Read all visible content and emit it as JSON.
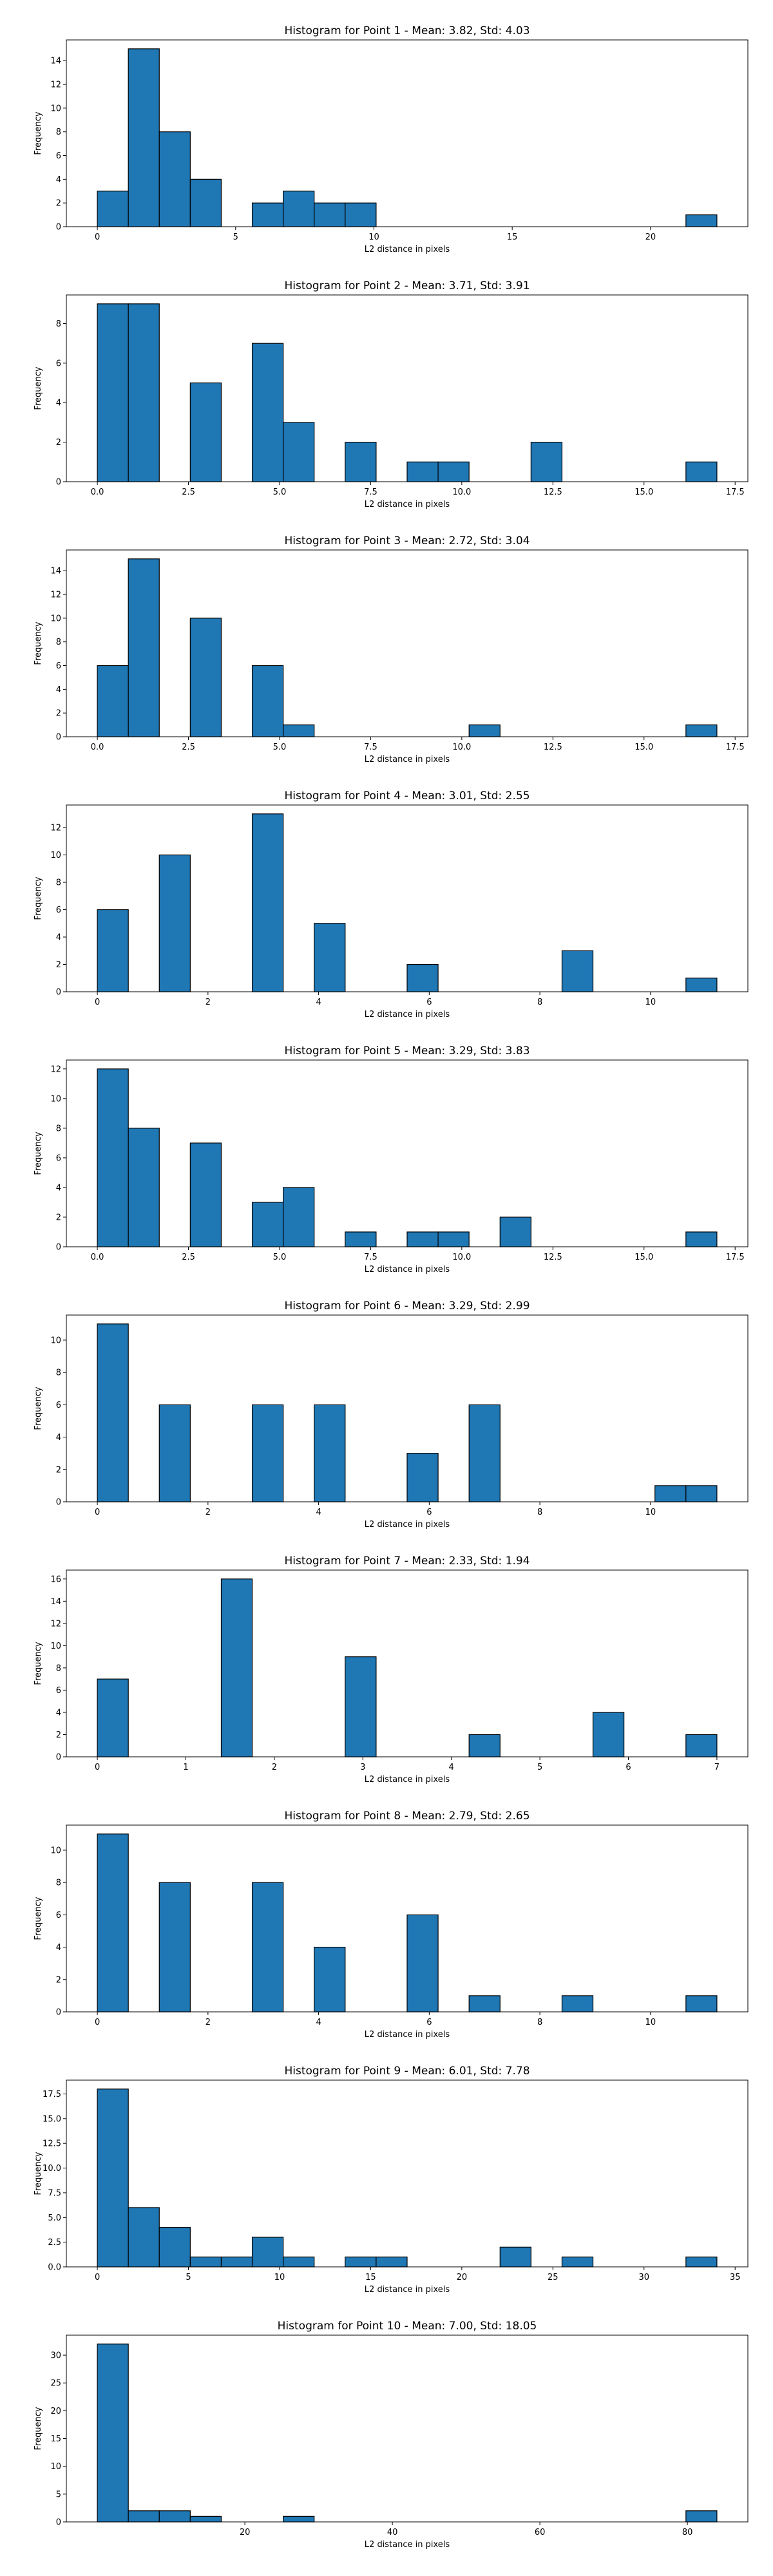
{
  "figure": {
    "bar_color": "#1f77b4",
    "edge_color": "#000000"
  },
  "chart_data": [
    {
      "type": "bar",
      "title": "Histogram for Point 1 - Mean: 3.82, Std: 4.03",
      "xlabel": "L2 distance in pixels",
      "ylabel": "Frequency",
      "xlim": [
        -1.12,
        23.52
      ],
      "ylim": [
        0,
        15.75
      ],
      "xticks": [
        0,
        5,
        10,
        15,
        20
      ],
      "xtick_labels": [
        "0",
        "5",
        "10",
        "15",
        "20"
      ],
      "yticks": [
        0,
        2,
        4,
        6,
        8,
        10,
        12,
        14
      ],
      "ytick_labels": [
        "0",
        "2",
        "4",
        "6",
        "8",
        "10",
        "12",
        "14"
      ],
      "bins": {
        "start": 0.0,
        "width": 1.12
      },
      "counts": [
        3,
        15,
        8,
        4,
        0,
        2,
        3,
        2,
        2,
        0,
        0,
        0,
        0,
        0,
        0,
        0,
        0,
        0,
        0,
        1
      ]
    },
    {
      "type": "bar",
      "title": "Histogram for Point 2 - Mean: 3.71, Std: 3.91",
      "xlabel": "L2 distance in pixels",
      "ylabel": "Frequency",
      "xlim": [
        -0.85,
        17.85
      ],
      "ylim": [
        0,
        9.45
      ],
      "xticks": [
        0,
        2.5,
        5,
        7.5,
        10,
        12.5,
        15,
        17.5
      ],
      "xtick_labels": [
        "0.0",
        "2.5",
        "5.0",
        "7.5",
        "10.0",
        "12.5",
        "15.0",
        "17.5"
      ],
      "yticks": [
        0,
        2,
        4,
        6,
        8
      ],
      "ytick_labels": [
        "0",
        "2",
        "4",
        "6",
        "8"
      ],
      "bins": {
        "start": 0.0,
        "width": 0.85
      },
      "counts": [
        9,
        9,
        0,
        5,
        0,
        7,
        3,
        0,
        2,
        0,
        1,
        1,
        0,
        0,
        2,
        0,
        0,
        0,
        0,
        1
      ]
    },
    {
      "type": "bar",
      "title": "Histogram for Point 3 - Mean: 2.72, Std: 3.04",
      "xlabel": "L2 distance in pixels",
      "ylabel": "Frequency",
      "xlim": [
        -0.85,
        17.85
      ],
      "ylim": [
        0,
        15.75
      ],
      "xticks": [
        0,
        2.5,
        5,
        7.5,
        10,
        12.5,
        15,
        17.5
      ],
      "xtick_labels": [
        "0.0",
        "2.5",
        "5.0",
        "7.5",
        "10.0",
        "12.5",
        "15.0",
        "17.5"
      ],
      "yticks": [
        0,
        2,
        4,
        6,
        8,
        10,
        12,
        14
      ],
      "ytick_labels": [
        "0",
        "2",
        "4",
        "6",
        "8",
        "10",
        "12",
        "14"
      ],
      "bins": {
        "start": 0.0,
        "width": 0.85
      },
      "counts": [
        6,
        15,
        0,
        10,
        0,
        6,
        1,
        0,
        0,
        0,
        0,
        0,
        1,
        0,
        0,
        0,
        0,
        0,
        0,
        1
      ]
    },
    {
      "type": "bar",
      "title": "Histogram for Point 4 - Mean: 3.01, Std: 2.55",
      "xlabel": "L2 distance in pixels",
      "ylabel": "Frequency",
      "xlim": [
        -0.56,
        11.76
      ],
      "ylim": [
        0,
        13.65
      ],
      "xticks": [
        0,
        2,
        4,
        6,
        8,
        10
      ],
      "xtick_labels": [
        "0",
        "2",
        "4",
        "6",
        "8",
        "10"
      ],
      "yticks": [
        0,
        2,
        4,
        6,
        8,
        10,
        12
      ],
      "ytick_labels": [
        "0",
        "2",
        "4",
        "6",
        "8",
        "10",
        "12"
      ],
      "bins": {
        "start": 0.0,
        "width": 0.56
      },
      "counts": [
        6,
        0,
        10,
        0,
        0,
        13,
        0,
        5,
        0,
        0,
        2,
        0,
        0,
        0,
        0,
        3,
        0,
        0,
        0,
        1
      ]
    },
    {
      "type": "bar",
      "title": "Histogram for Point 5 - Mean: 3.29, Std: 3.83",
      "xlabel": "L2 distance in pixels",
      "ylabel": "Frequency",
      "xlim": [
        -0.85,
        17.85
      ],
      "ylim": [
        0,
        12.6
      ],
      "xticks": [
        0,
        2.5,
        5,
        7.5,
        10,
        12.5,
        15,
        17.5
      ],
      "xtick_labels": [
        "0.0",
        "2.5",
        "5.0",
        "7.5",
        "10.0",
        "12.5",
        "15.0",
        "17.5"
      ],
      "yticks": [
        0,
        2,
        4,
        6,
        8,
        10,
        12
      ],
      "ytick_labels": [
        "0",
        "2",
        "4",
        "6",
        "8",
        "10",
        "12"
      ],
      "bins": {
        "start": 0.0,
        "width": 0.85
      },
      "counts": [
        12,
        8,
        0,
        7,
        0,
        3,
        4,
        0,
        1,
        0,
        1,
        1,
        0,
        2,
        0,
        0,
        0,
        0,
        0,
        1
      ]
    },
    {
      "type": "bar",
      "title": "Histogram for Point 6 - Mean: 3.29, Std: 2.99",
      "xlabel": "L2 distance in pixels",
      "ylabel": "Frequency",
      "xlim": [
        -0.56,
        11.76
      ],
      "ylim": [
        0,
        11.55
      ],
      "xticks": [
        0,
        2,
        4,
        6,
        8,
        10
      ],
      "xtick_labels": [
        "0",
        "2",
        "4",
        "6",
        "8",
        "10"
      ],
      "yticks": [
        0,
        2,
        4,
        6,
        8,
        10
      ],
      "ytick_labels": [
        "0",
        "2",
        "4",
        "6",
        "8",
        "10"
      ],
      "bins": {
        "start": 0.0,
        "width": 0.56
      },
      "counts": [
        11,
        0,
        6,
        0,
        0,
        6,
        0,
        6,
        0,
        0,
        3,
        0,
        6,
        0,
        0,
        0,
        0,
        0,
        1,
        1
      ]
    },
    {
      "type": "bar",
      "title": "Histogram for Point 7 - Mean: 2.33, Std: 1.94",
      "xlabel": "L2 distance in pixels",
      "ylabel": "Frequency",
      "xlim": [
        -0.35,
        7.35
      ],
      "ylim": [
        0,
        16.8
      ],
      "xticks": [
        0,
        1,
        2,
        3,
        4,
        5,
        6,
        7
      ],
      "xtick_labels": [
        "0",
        "1",
        "2",
        "3",
        "4",
        "5",
        "6",
        "7"
      ],
      "yticks": [
        0,
        2,
        4,
        6,
        8,
        10,
        12,
        14,
        16
      ],
      "ytick_labels": [
        "0",
        "2",
        "4",
        "6",
        "8",
        "10",
        "12",
        "14",
        "16"
      ],
      "bins": {
        "start": 0.0,
        "width": 0.35
      },
      "counts": [
        7,
        0,
        0,
        0,
        16,
        0,
        0,
        0,
        9,
        0,
        0,
        0,
        2,
        0,
        0,
        0,
        4,
        0,
        0,
        2
      ]
    },
    {
      "type": "bar",
      "title": "Histogram for Point 8 - Mean: 2.79, Std: 2.65",
      "xlabel": "L2 distance in pixels",
      "ylabel": "Frequency",
      "xlim": [
        -0.56,
        11.76
      ],
      "ylim": [
        0,
        11.55
      ],
      "xticks": [
        0,
        2,
        4,
        6,
        8,
        10
      ],
      "xtick_labels": [
        "0",
        "2",
        "4",
        "6",
        "8",
        "10"
      ],
      "yticks": [
        0,
        2,
        4,
        6,
        8,
        10
      ],
      "ytick_labels": [
        "0",
        "2",
        "4",
        "6",
        "8",
        "10"
      ],
      "bins": {
        "start": 0.0,
        "width": 0.56
      },
      "counts": [
        11,
        0,
        8,
        0,
        0,
        8,
        0,
        4,
        0,
        0,
        6,
        0,
        1,
        0,
        0,
        1,
        0,
        0,
        0,
        1
      ]
    },
    {
      "type": "bar",
      "title": "Histogram for Point 9 - Mean: 6.01, Std: 7.78",
      "xlabel": "L2 distance in pixels",
      "ylabel": "Frequency",
      "xlim": [
        -1.7,
        35.7
      ],
      "ylim": [
        0,
        18.9
      ],
      "xticks": [
        0,
        5,
        10,
        15,
        20,
        25,
        30,
        35
      ],
      "xtick_labels": [
        "0",
        "5",
        "10",
        "15",
        "20",
        "25",
        "30",
        "35"
      ],
      "yticks": [
        0,
        2.5,
        5,
        7.5,
        10,
        12.5,
        15,
        17.5
      ],
      "ytick_labels": [
        "0.0",
        "2.5",
        "5.0",
        "7.5",
        "10.0",
        "12.5",
        "15.0",
        "17.5"
      ],
      "bins": {
        "start": 0.0,
        "width": 1.7
      },
      "counts": [
        18,
        6,
        4,
        1,
        1,
        3,
        1,
        0,
        1,
        1,
        0,
        0,
        0,
        2,
        0,
        1,
        0,
        0,
        0,
        1
      ]
    },
    {
      "type": "bar",
      "title": "Histogram for Point 10 - Mean: 7.00, Std: 18.05",
      "xlabel": "L2 distance in pixels",
      "ylabel": "Frequency",
      "xlim": [
        -4.2,
        88.2
      ],
      "ylim": [
        0,
        33.6
      ],
      "xticks": [
        20,
        40,
        60,
        80
      ],
      "xtick_labels": [
        "20",
        "40",
        "60",
        "80"
      ],
      "yticks": [
        0,
        5,
        10,
        15,
        20,
        25,
        30
      ],
      "ytick_labels": [
        "0",
        "5",
        "10",
        "15",
        "20",
        "25",
        "30"
      ],
      "bins": {
        "start": 0.0,
        "width": 4.2
      },
      "counts": [
        32,
        2,
        2,
        1,
        0,
        0,
        1,
        0,
        0,
        0,
        0,
        0,
        0,
        0,
        0,
        0,
        0,
        0,
        0,
        2
      ]
    }
  ]
}
